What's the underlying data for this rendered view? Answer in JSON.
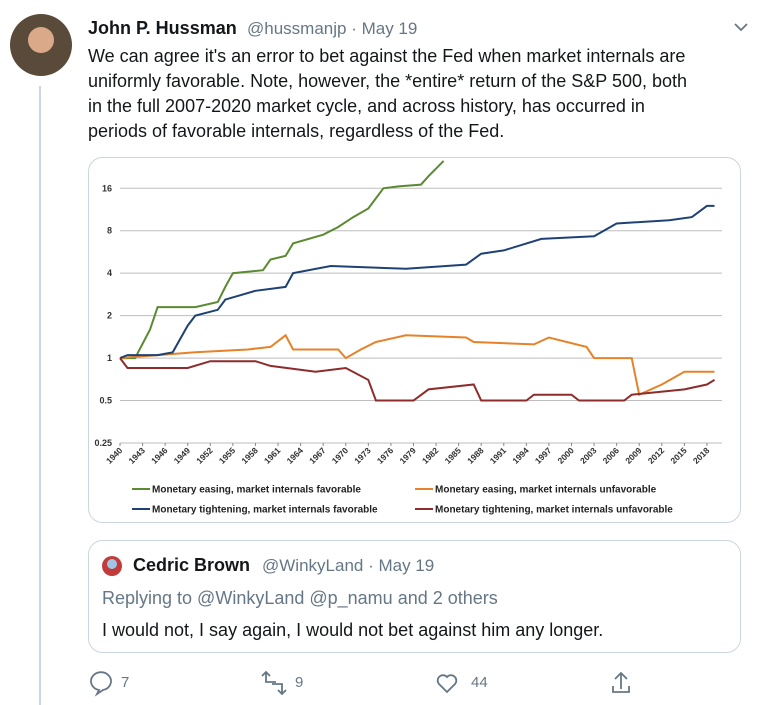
{
  "tweet": {
    "author_name": "John P. Hussman",
    "meta": "@hussmanjp · May 19",
    "text_lines": [
      "We can agree it's an error to bet against the Fed when market internals are",
      "uniformly favorable. Note, however, the *entire* return of the S&P 500, both",
      "in the full 2007-2020 market cycle, and across history, has occurred in",
      "periods of favorable internals, regardless of the Fed."
    ],
    "chart": {
      "type": "line",
      "log_scale": true,
      "xlim": [
        1940,
        2020
      ],
      "xticks": [
        1940,
        1943,
        1946,
        1949,
        1952,
        1955,
        1958,
        1961,
        1964,
        1967,
        1970,
        1973,
        1976,
        1979,
        1982,
        1985,
        1988,
        1991,
        1994,
        1997,
        2000,
        2003,
        2006,
        2009,
        2012,
        2015,
        2018
      ],
      "ylim": [
        0.25,
        28
      ],
      "yticks": [
        0.25,
        0.5,
        1,
        2,
        4,
        8,
        16
      ],
      "grid": true,
      "series": [
        {
          "name": "Monetary easing, market internals favorable",
          "color": "#5b8a32",
          "x": [
            1940,
            1942,
            1944,
            1945,
            1950,
            1953,
            1954,
            1955,
            1959,
            1960,
            1962,
            1963,
            1967,
            1969,
            1971,
            1973,
            1975,
            1977,
            1980,
            1981,
            1983
          ],
          "values": [
            1,
            1,
            1.6,
            2.3,
            2.3,
            2.5,
            3.2,
            4,
            4.2,
            5,
            5.3,
            6.5,
            7.5,
            8.5,
            10,
            11.5,
            16,
            16.5,
            17,
            19.5,
            25
          ]
        },
        {
          "name": "Monetary easing, market internals unfavorable",
          "color": "#e5822a",
          "x": [
            1940,
            1945,
            1950,
            1957,
            1960,
            1962,
            1963,
            1969,
            1970,
            1972,
            1974,
            1978,
            1986,
            1987,
            1995,
            1997,
            2002,
            2003,
            2008,
            2009,
            2012,
            2015,
            2019
          ],
          "values": [
            1,
            1.05,
            1.1,
            1.15,
            1.2,
            1.45,
            1.15,
            1.15,
            1,
            1.15,
            1.3,
            1.45,
            1.4,
            1.3,
            1.25,
            1.4,
            1.2,
            1,
            1,
            0.55,
            0.65,
            0.8,
            0.8
          ]
        },
        {
          "name": "Monetary tightening, market internals favorable",
          "color": "#1f4274",
          "x": [
            1940,
            1941,
            1945,
            1947,
            1949,
            1950,
            1953,
            1954,
            1958,
            1962,
            1963,
            1968,
            1978,
            1986,
            1988,
            1991,
            1996,
            2003,
            2006,
            2013,
            2016,
            2018,
            2019
          ],
          "values": [
            1,
            1.05,
            1.05,
            1.1,
            1.7,
            2,
            2.2,
            2.6,
            3,
            3.2,
            4,
            4.5,
            4.3,
            4.6,
            5.5,
            5.8,
            7,
            7.3,
            9,
            9.5,
            10,
            12,
            12
          ]
        },
        {
          "name": "Monetary tightening, market internals unfavorable",
          "color": "#8e2c2c",
          "x": [
            1940,
            1941,
            1949,
            1952,
            1958,
            1960,
            1966,
            1970,
            1973,
            1974,
            1979,
            1981,
            1987,
            1988,
            1994,
            1995,
            2000,
            2001,
            2007,
            2008,
            2015,
            2018,
            2019
          ],
          "values": [
            1,
            0.85,
            0.85,
            0.95,
            0.95,
            0.88,
            0.8,
            0.85,
            0.7,
            0.5,
            0.5,
            0.6,
            0.65,
            0.5,
            0.5,
            0.55,
            0.55,
            0.5,
            0.5,
            0.55,
            0.6,
            0.65,
            0.7
          ]
        }
      ]
    },
    "quoted": {
      "author_name": "Cedric Brown",
      "meta": "@WinkyLand · May 19",
      "replying_to": "Replying to @WinkyLand @p_namu and 2 others",
      "text": "I would not, I say again, I would not bet against him any longer."
    },
    "actions": {
      "replies": 7,
      "retweets": 9,
      "likes": 44
    }
  }
}
